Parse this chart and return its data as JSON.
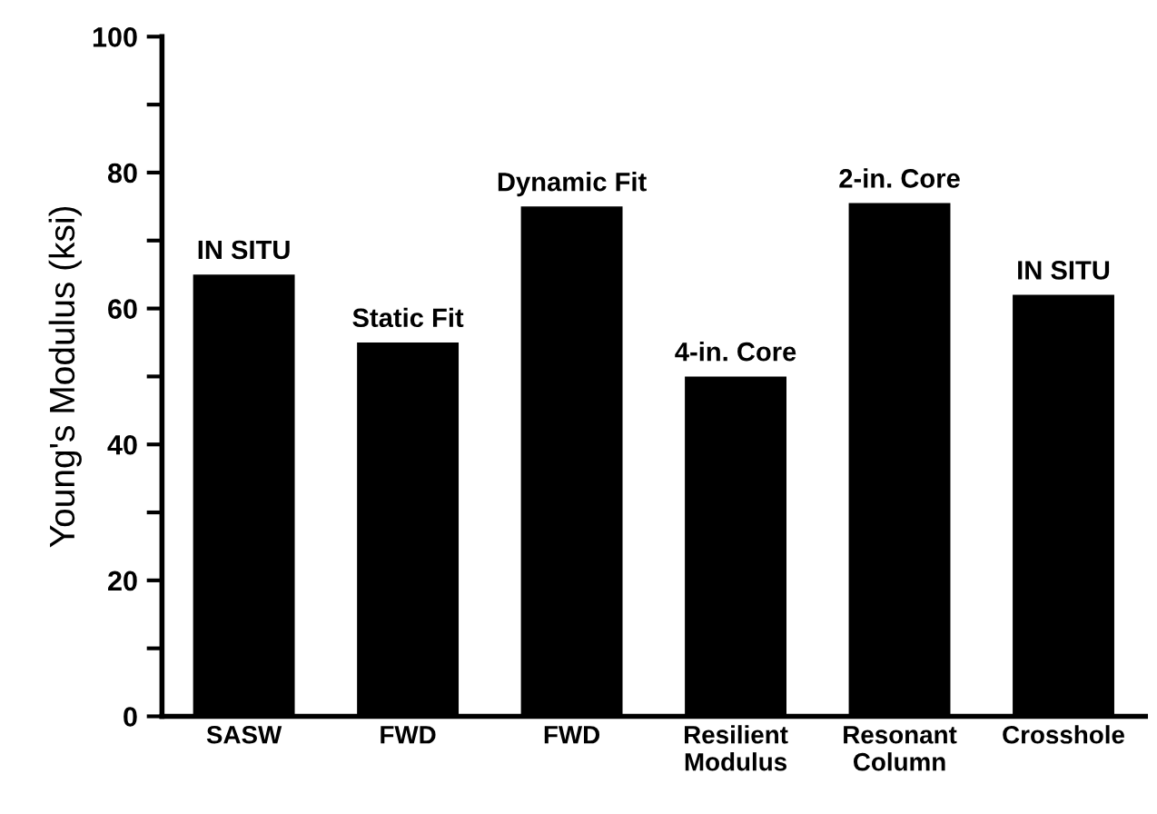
{
  "chart_data": {
    "type": "bar",
    "ylabel": "Young's Modulus (ksi)",
    "categories": [
      "SASW",
      "FWD",
      "FWD",
      "Resilient\nModulus",
      "Resonant\nColumn",
      "Crosshole"
    ],
    "values": [
      65,
      55,
      75,
      50,
      75.5,
      62
    ],
    "color": "#000000",
    "ylim": [
      0,
      100
    ],
    "yticks": [
      0,
      {
        "value": 10,
        "label": null
      },
      20,
      {
        "value": 30,
        "label": null
      },
      40,
      {
        "value": 50,
        "label": null
      },
      60,
      {
        "value": 70,
        "label": null
      },
      80,
      {
        "value": 90,
        "label": null
      },
      100
    ],
    "grid": false,
    "annotations": [
      "IN SITU",
      "Static Fit",
      "Dynamic Fit",
      "4-in. Core",
      "2-in. Core",
      "IN SITU"
    ]
  }
}
